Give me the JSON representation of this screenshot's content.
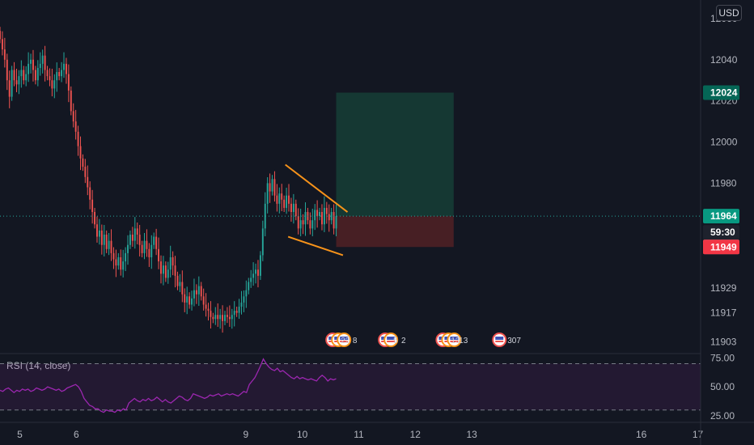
{
  "currency_button": "USD",
  "colors": {
    "background": "#131722",
    "up": "#26a69a",
    "down": "#ef5350",
    "pattern": "#f7931a",
    "rsi": "#9c27b0",
    "profit_zone": "#153a35",
    "loss_zone": "#4a2025",
    "last_price_tag": "#089981",
    "stop_tag": "#f23645",
    "target_tag": "#056656",
    "countdown_tag": "#1e222d",
    "mid_tag": "#787b86"
  },
  "chart_data": {
    "type": "candlestick",
    "y_axis": {
      "range": [
        11898,
        12069
      ],
      "ticks": [
        12060,
        12040,
        12020,
        12000,
        11980,
        11929,
        11917,
        11903
      ]
    },
    "x_axis": {
      "range": [
        4.65,
        17.05
      ],
      "ticks": [
        {
          "value": 5,
          "label": "5"
        },
        {
          "value": 6,
          "label": "6"
        },
        {
          "value": 9,
          "label": "9"
        },
        {
          "value": 10,
          "label": "10"
        },
        {
          "value": 11,
          "label": "11"
        },
        {
          "value": 12,
          "label": "12"
        },
        {
          "value": 13,
          "label": "13"
        },
        {
          "value": 16,
          "label": "16"
        },
        {
          "value": 17,
          "label": "17"
        }
      ]
    },
    "price_tags": {
      "target": "12024",
      "current": "11964",
      "countdown": "59:30",
      "mid": "11964",
      "stop": "11949"
    },
    "position": {
      "x_start": 10.6,
      "x_end": 12.68,
      "entry": 11964,
      "target": 12024,
      "stop": 11949
    },
    "wedge": {
      "upper": [
        [
          9.7,
          11989
        ],
        [
          10.8,
          11966
        ]
      ],
      "lower": [
        [
          9.75,
          11954
        ],
        [
          10.72,
          11945
        ]
      ]
    },
    "closes": [
      12050,
      12045,
      12040,
      12030,
      12022,
      12035,
      12030,
      12028,
      12032,
      12035,
      12030,
      12033,
      12038,
      12040,
      12035,
      12030,
      12036,
      12038,
      12042,
      12035,
      12032,
      12030,
      12026,
      12030,
      12034,
      12032,
      12035,
      12038,
      12033,
      12025,
      12015,
      12010,
      12005,
      11998,
      11992,
      11988,
      11983,
      11978,
      11972,
      11966,
      11960,
      11954,
      11957,
      11950,
      11955,
      11948,
      11952,
      11946,
      11943,
      11940,
      11944,
      11938,
      11942,
      11946,
      11950,
      11955,
      11952,
      11958,
      11955,
      11950,
      11946,
      11952,
      11948,
      11944,
      11950,
      11954,
      11948,
      11942,
      11936,
      11940,
      11934,
      11938,
      11944,
      11940,
      11935,
      11930,
      11932,
      11926,
      11922,
      11925,
      11921,
      11924,
      11928,
      11926,
      11930,
      11925,
      11921,
      11919,
      11918,
      11915,
      11914,
      11916,
      11914,
      11916,
      11913,
      11916,
      11915,
      11914,
      11916,
      11918,
      11917,
      11920,
      11922,
      11925,
      11928,
      11932,
      11934,
      11936,
      11938,
      11935,
      11945,
      11958,
      11970,
      11980,
      11976,
      11982,
      11974,
      11970,
      11975,
      11972,
      11968,
      11974,
      11970,
      11966,
      11970,
      11964,
      11958,
      11962,
      11960,
      11966,
      11962,
      11958,
      11962,
      11967,
      11964,
      11966,
      11960,
      11968,
      11965,
      11962,
      11966,
      11958,
      11964
    ],
    "rsi": {
      "title": "RSI (14, close)",
      "range": [
        20,
        78
      ],
      "ticks": [
        75,
        50,
        25
      ],
      "bands": [
        70,
        30
      ],
      "values": [
        47,
        46,
        48,
        49,
        47,
        45,
        47,
        46,
        48,
        47,
        48,
        46,
        47,
        49,
        48,
        47,
        48,
        50,
        49,
        48,
        47,
        48,
        46,
        47,
        49,
        50,
        51,
        52,
        50,
        46,
        40,
        37,
        34,
        33,
        31,
        31,
        29,
        28,
        30,
        29,
        29,
        28,
        30,
        29,
        31,
        30,
        36,
        38,
        40,
        38,
        37,
        39,
        38,
        40,
        38,
        39,
        41,
        39,
        37,
        39,
        37,
        36,
        38,
        40,
        42,
        41,
        39,
        38,
        40,
        44,
        43,
        42,
        41,
        40,
        41,
        43,
        42,
        43,
        44,
        42,
        43,
        44,
        43,
        44,
        43,
        42,
        44,
        46,
        45,
        52,
        55,
        58,
        63,
        68,
        74,
        70,
        67,
        65,
        64,
        66,
        63,
        64,
        62,
        60,
        58,
        57,
        59,
        57,
        58,
        57,
        56,
        57,
        56,
        55,
        58,
        60,
        58,
        55,
        57,
        56,
        57
      ]
    },
    "events": [
      {
        "x": 10.71,
        "label": "22",
        "count": 3
      },
      {
        "x": 10.92,
        "label": "8",
        "count": 0
      },
      {
        "x": 11.64,
        "label": "5",
        "count": 2
      },
      {
        "x": 11.78,
        "label": "2",
        "count": 0
      },
      {
        "x": 12.66,
        "label": "13",
        "count": 3
      },
      {
        "x": 12.8,
        "label": "13",
        "count": 0
      },
      {
        "x": 13.66,
        "label": "307",
        "count": 1
      }
    ]
  }
}
